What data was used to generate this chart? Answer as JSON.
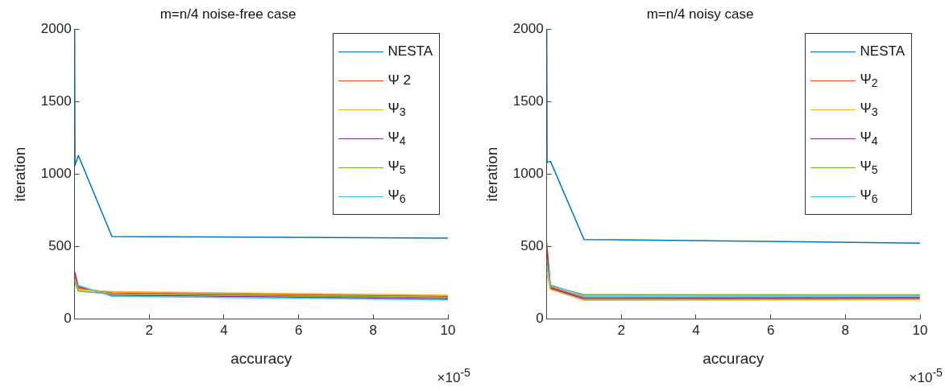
{
  "chart_data": [
    {
      "type": "line",
      "title": "m=n/4 noise-free case",
      "xlabel": "accuracy",
      "ylabel": "iteration",
      "annotations": [
        "×10$^{-5}$"
      ],
      "x": [
        0.001,
        0.01,
        0.1,
        1,
        10
      ],
      "xlim": [
        0,
        10
      ],
      "xticks": [
        2,
        4,
        6,
        8,
        10
      ],
      "ylim": [
        0,
        2000
      ],
      "yticks": [
        0,
        500,
        1000,
        1500,
        2000
      ],
      "legend": "top right",
      "series": [
        {
          "name": "NESTA",
          "color": "#0072bd",
          "values": [
            2000,
            1060,
            1130,
            570,
            560
          ]
        },
        {
          "name": "Ψ 2",
          "color": "#d95319",
          "x": [
            0,
            0.1,
            1,
            10
          ],
          "values": [
            300,
            214,
            182,
            158
          ]
        },
        {
          "name": "Ψ$_{3}$",
          "color": "#edb120",
          "x": [
            0,
            0.1,
            1,
            10
          ],
          "values": [
            280,
            204,
            190,
            166
          ]
        },
        {
          "name": "Ψ$_{4}$",
          "color": "#7e2f8e",
          "x": [
            0,
            0.1,
            1,
            10
          ],
          "values": [
            330,
            224,
            166,
            142
          ]
        },
        {
          "name": "Ψ$_{5}$",
          "color": "#77ac30",
          "x": [
            0,
            0.1,
            1,
            10
          ],
          "values": [
            260,
            194,
            174,
            150
          ]
        },
        {
          "name": "Ψ$_{6}$",
          "color": "#4dbeee",
          "x": [
            0,
            0.1,
            1,
            10
          ],
          "values": [
            240,
            234,
            158,
            134
          ]
        }
      ]
    },
    {
      "type": "line",
      "title": "m=n/4 noisy case",
      "xlabel": "accuracy",
      "ylabel": "iteration",
      "annotations": [
        "×10$^{-5}$"
      ],
      "x": [
        0.001,
        0.01,
        0.1,
        1,
        10
      ],
      "xlim": [
        0,
        10
      ],
      "xticks": [
        2,
        4,
        6,
        8,
        10
      ],
      "ylim": [
        0,
        2000
      ],
      "yticks": [
        0,
        500,
        1000,
        1500,
        2000
      ],
      "legend": "top right",
      "series": [
        {
          "name": "NESTA",
          "color": "#0072bd",
          "values": [
            2000,
            1080,
            1090,
            550,
            525
          ]
        },
        {
          "name": "Ψ$_{2}$",
          "color": "#d95319",
          "x": [
            0,
            0.1,
            1,
            10
          ],
          "values": [
            530,
            222,
            150,
            152
          ]
        },
        {
          "name": "Ψ$_{3}$",
          "color": "#edb120",
          "x": [
            0,
            0.1,
            1,
            10
          ],
          "values": [
            320,
            205,
            130,
            135
          ]
        },
        {
          "name": "Ψ$_{4}$",
          "color": "#7e2f8e",
          "x": [
            0,
            0.1,
            1,
            10
          ],
          "values": [
            480,
            214,
            140,
            145
          ]
        },
        {
          "name": "Ψ$_{5}$",
          "color": "#77ac30",
          "x": [
            0,
            0.1,
            1,
            10
          ],
          "values": [
            420,
            230,
            170,
            168
          ]
        },
        {
          "name": "Ψ$_{6}$",
          "color": "#4dbeee",
          "x": [
            0,
            0.1,
            1,
            10
          ],
          "values": [
            370,
            238,
            160,
            160
          ]
        }
      ]
    }
  ]
}
